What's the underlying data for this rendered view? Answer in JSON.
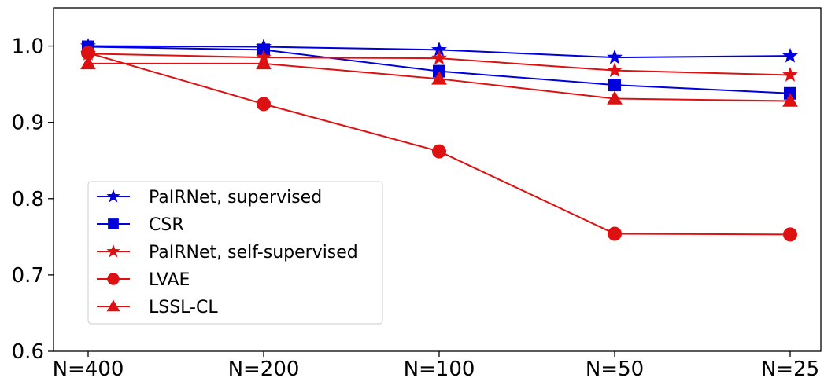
{
  "chart_data": {
    "type": "line",
    "title": "",
    "xlabel": "",
    "ylabel": "",
    "categories": [
      "N=400",
      "N=200",
      "N=100",
      "N=50",
      "N=25"
    ],
    "ylim": [
      0.6,
      1.05
    ],
    "yticks": [
      0.6,
      0.7,
      0.8,
      0.9,
      1.0
    ],
    "ytick_labels": [
      "0.6",
      "0.7",
      "0.8",
      "0.9",
      "1.0"
    ],
    "grid": false,
    "legend_position": "lower-left",
    "series": [
      {
        "name": "PaIRNet, supervised",
        "color": "#0000dd",
        "marker": "star",
        "values": [
          1.0,
          0.999,
          0.995,
          0.985,
          0.987
        ]
      },
      {
        "name": "CSR",
        "color": "#0000dd",
        "marker": "square",
        "values": [
          0.999,
          0.995,
          0.967,
          0.949,
          0.938
        ]
      },
      {
        "name": "PaIRNet, self-supervised",
        "color": "#dd1111",
        "marker": "star",
        "values": [
          0.99,
          0.985,
          0.984,
          0.968,
          0.962
        ]
      },
      {
        "name": "LVAE",
        "color": "#dd1111",
        "marker": "circle",
        "values": [
          0.991,
          0.924,
          0.862,
          0.754,
          0.753
        ]
      },
      {
        "name": "LSSL-CL",
        "color": "#dd1111",
        "marker": "triangle",
        "values": [
          0.977,
          0.977,
          0.957,
          0.931,
          0.928
        ]
      }
    ]
  }
}
